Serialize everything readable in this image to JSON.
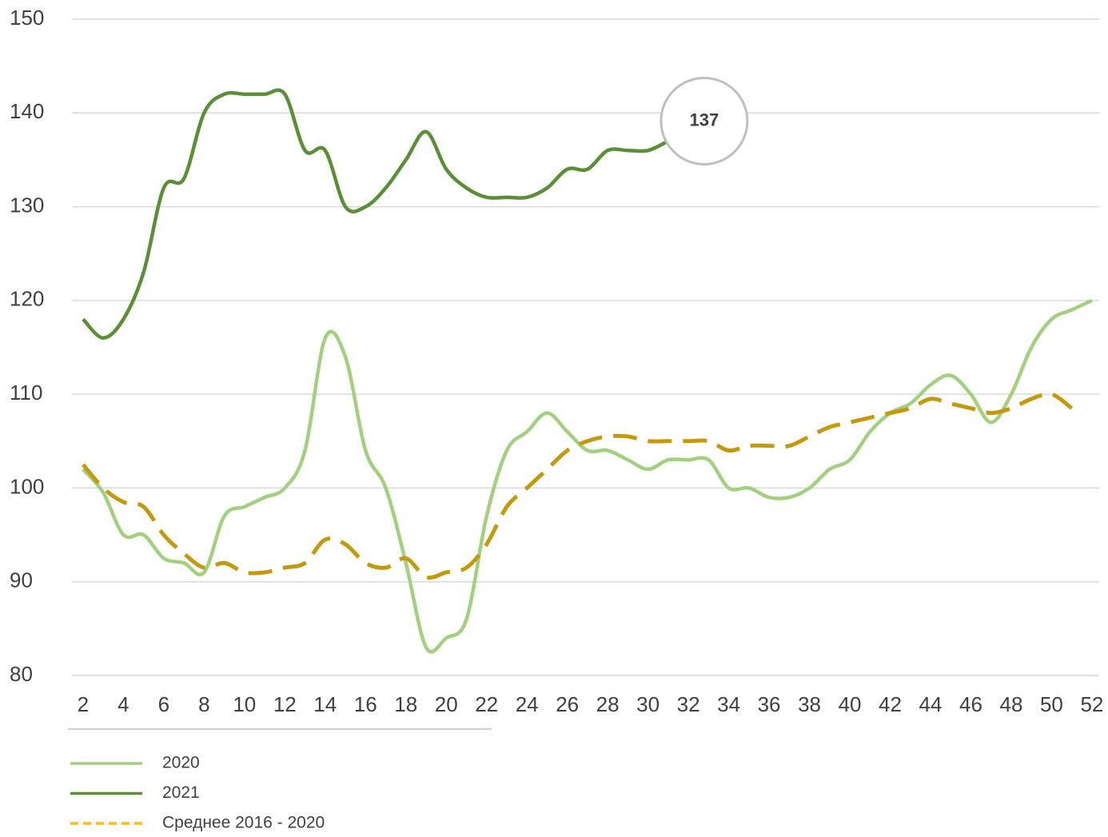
{
  "chart_data": {
    "type": "line",
    "x": [
      2,
      3,
      4,
      5,
      6,
      7,
      8,
      9,
      10,
      11,
      12,
      13,
      14,
      15,
      16,
      17,
      18,
      19,
      20,
      21,
      22,
      23,
      24,
      25,
      26,
      27,
      28,
      29,
      30,
      31,
      32,
      33,
      34,
      35,
      36,
      37,
      38,
      39,
      40,
      41,
      42,
      43,
      44,
      45,
      46,
      47,
      48,
      49,
      50,
      51,
      52
    ],
    "series": [
      {
        "name": "2020",
        "color": "#a2d07f",
        "dash": false,
        "values": [
          102,
          99.5,
          95,
          95,
          92.5,
          92,
          91,
          97,
          98,
          99,
          100,
          104,
          116,
          114,
          104,
          100,
          92,
          83,
          84,
          86,
          97,
          104,
          106,
          108,
          106,
          104,
          104,
          103,
          102,
          103,
          103,
          103,
          100,
          100,
          99,
          99,
          100,
          102,
          103,
          106,
          108,
          109,
          111,
          112,
          110,
          107,
          110,
          115,
          118,
          119,
          120
        ]
      },
      {
        "name": "2021",
        "color": "#5b8f36",
        "dash": false,
        "values": [
          118,
          116,
          118,
          123,
          132,
          133,
          140,
          142,
          142,
          142,
          142,
          136,
          136,
          130,
          130,
          132,
          135,
          138,
          134,
          132,
          131,
          131,
          131,
          132,
          134,
          134,
          136,
          136,
          136,
          137,
          null,
          null,
          null,
          null,
          null,
          null,
          null,
          null,
          null,
          null,
          null,
          null,
          null,
          null,
          null,
          null,
          null,
          null,
          null,
          null,
          null
        ],
        "value_labels": [
          null,
          null,
          null,
          null,
          null,
          null,
          null,
          null,
          null,
          null,
          null,
          null,
          null,
          null,
          null,
          null,
          null,
          null,
          null,
          null,
          null,
          null,
          null,
          null,
          null,
          null,
          null,
          null,
          null,
          "137",
          null,
          null,
          null,
          null,
          null,
          null,
          null,
          null,
          null,
          null,
          null,
          null,
          null,
          null,
          null,
          null,
          null,
          null,
          null,
          null,
          null
        ]
      },
      {
        "name": "Среднее 2016 - 2020",
        "color": "#c49a0c",
        "dash": true,
        "values": [
          102.5,
          100,
          98.5,
          98,
          95,
          93,
          91.5,
          92,
          91,
          91,
          91.5,
          92,
          94.5,
          94,
          92,
          91.5,
          92.5,
          90.5,
          91,
          91.5,
          94,
          98,
          100,
          102,
          104,
          105,
          105.5,
          105.5,
          105,
          105,
          105,
          105,
          104,
          104.5,
          104.5,
          104.5,
          105.5,
          106.5,
          107,
          107.5,
          108,
          108.5,
          109.5,
          109,
          108.5,
          108,
          108.5,
          109.5,
          110,
          108.5,
          null
        ]
      }
    ],
    "xlim": [
      1.45,
      52.36
    ],
    "xticks": [
      2,
      4,
      6,
      8,
      10,
      12,
      14,
      16,
      18,
      20,
      22,
      24,
      26,
      28,
      30,
      32,
      34,
      36,
      38,
      40,
      42,
      44,
      46,
      48,
      50,
      52
    ],
    "ylim": [
      80,
      150
    ],
    "yticks": [
      80,
      90,
      100,
      110,
      120,
      130,
      140,
      150
    ],
    "grid": true,
    "legend": "bottom-left"
  }
}
